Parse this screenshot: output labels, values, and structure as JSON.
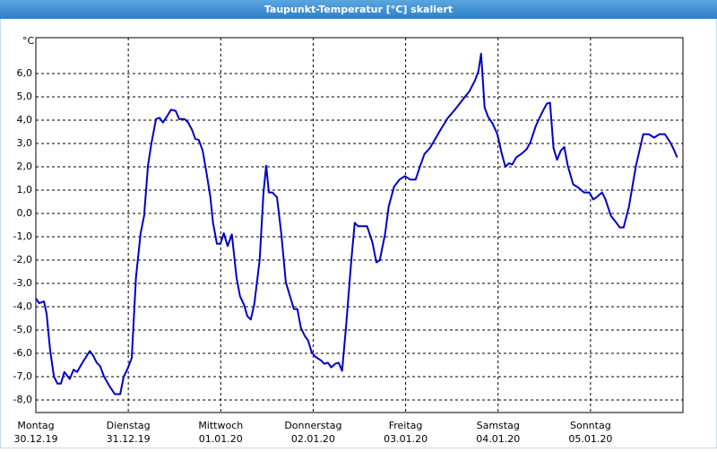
{
  "chart_data": {
    "type": "line",
    "title": "Taupunkt-Temperatur [°C] skaliert",
    "y_unit": "°C",
    "color": "#0000c8",
    "grid": true,
    "x": [
      0,
      0.9,
      2.1,
      2.8,
      3.7,
      4.7,
      5.6,
      6.5,
      7.4,
      8.8,
      9.8,
      10.7,
      12.1,
      14.0,
      14.9,
      15.8,
      16.7,
      17.7,
      19.1,
      20.5,
      21.9,
      22.8,
      23.7,
      24.9,
      26.0,
      27.2,
      28.1,
      29.1,
      30.0,
      31.2,
      32.1,
      33.0,
      34.0,
      35.1,
      36.3,
      37.2,
      38.6,
      39.5,
      40.5,
      41.4,
      42.3,
      43.3,
      44.4,
      45.3,
      46.0,
      47.0,
      47.9,
      48.8,
      49.8,
      50.9,
      52.1,
      53.0,
      54.0,
      54.9,
      55.8,
      56.7,
      58.1,
      59.1,
      59.8,
      60.5,
      61.4,
      62.6,
      63.7,
      64.9,
      66.0,
      67.0,
      67.9,
      68.8,
      69.8,
      70.7,
      71.6,
      72.6,
      74.0,
      74.9,
      75.8,
      76.7,
      77.7,
      78.6,
      79.5,
      80.5,
      81.9,
      82.8,
      83.7,
      85.1,
      86.0,
      87.4,
      88.4,
      89.3,
      90.7,
      91.6,
      93.0,
      94.4,
      95.8,
      97.2,
      98.6,
      99.5,
      100.9,
      102.3,
      103.7,
      105.1,
      107.0,
      108.8,
      110.7,
      112.6,
      114.0,
      114.9,
      115.6,
      116.5,
      117.4,
      118.6,
      119.8,
      120.9,
      121.9,
      122.8,
      123.7,
      124.7,
      126.0,
      127.4,
      128.4,
      129.8,
      131.2,
      132.6,
      133.5,
      134.4,
      135.3,
      136.3,
      137.2,
      138.1,
      139.5,
      140.9,
      142.3,
      143.7,
      144.7,
      145.6,
      147.0,
      147.9,
      149.3,
      150.7,
      151.6,
      152.6,
      154.0,
      155.8,
      157.7,
      159.1,
      160.5,
      161.9,
      163.3,
      164.7,
      165.6,
      166.5
    ],
    "values": [
      -3.65,
      -3.85,
      -3.77,
      -4.3,
      -5.85,
      -7.0,
      -7.3,
      -7.3,
      -6.8,
      -7.1,
      -6.7,
      -6.8,
      -6.4,
      -5.9,
      -6.1,
      -6.4,
      -6.55,
      -7.0,
      -7.4,
      -7.75,
      -7.75,
      -7.0,
      -6.7,
      -6.2,
      -2.75,
      -0.85,
      -0.1,
      2.05,
      3.0,
      4.05,
      4.1,
      3.9,
      4.15,
      4.45,
      4.4,
      4.05,
      4.05,
      3.9,
      3.6,
      3.2,
      3.15,
      2.7,
      1.65,
      0.7,
      -0.4,
      -1.3,
      -1.3,
      -0.85,
      -1.4,
      -0.9,
      -2.75,
      -3.55,
      -3.9,
      -4.4,
      -4.55,
      -3.9,
      -2.0,
      0.9,
      2.05,
      0.9,
      0.9,
      0.7,
      -0.85,
      -2.95,
      -3.55,
      -4.1,
      -4.1,
      -4.9,
      -5.25,
      -5.45,
      -5.95,
      -6.15,
      -6.3,
      -6.45,
      -6.4,
      -6.6,
      -6.45,
      -6.4,
      -6.75,
      -4.9,
      -2.0,
      -0.4,
      -0.55,
      -0.55,
      -0.55,
      -1.25,
      -2.1,
      -2.0,
      -0.85,
      0.3,
      1.15,
      1.45,
      1.6,
      1.45,
      1.45,
      1.9,
      2.55,
      2.8,
      3.2,
      3.6,
      4.1,
      4.45,
      4.85,
      5.25,
      5.7,
      6.1,
      6.85,
      4.55,
      4.15,
      3.85,
      3.4,
      2.6,
      2.0,
      2.15,
      2.1,
      2.4,
      2.55,
      2.75,
      3.05,
      3.75,
      4.25,
      4.7,
      4.75,
      2.8,
      2.3,
      2.7,
      2.85,
      2.05,
      1.25,
      1.1,
      0.9,
      0.9,
      0.6,
      0.7,
      0.9,
      0.6,
      -0.1,
      -0.4,
      -0.6,
      -0.6,
      0.3,
      2.05,
      3.4,
      3.4,
      3.25,
      3.4,
      3.4,
      3.05,
      2.75,
      2.4
    ],
    "xlim": [
      0,
      168
    ],
    "xticks": [
      {
        "value": 0,
        "label": "Montag"
      },
      {
        "value": 24,
        "label": "Dienstag"
      },
      {
        "value": 48,
        "label": "Mittwoch"
      },
      {
        "value": 72,
        "label": "Donnerstag"
      },
      {
        "value": 96,
        "label": "Freitag"
      },
      {
        "value": 120,
        "label": "Samstag"
      },
      {
        "value": 144,
        "label": "Sonntag"
      }
    ],
    "xtick_dates": [
      "30.12.19",
      "31.12.19",
      "01.01.20",
      "02.01.20",
      "03.01.20",
      "04.01.20",
      "05.01.20"
    ],
    "ylim": [
      -8.54,
      7.54
    ],
    "yticks": [
      {
        "value": 6,
        "label": "6,0"
      },
      {
        "value": 5,
        "label": "5,0"
      },
      {
        "value": 4,
        "label": "4,0"
      },
      {
        "value": 3,
        "label": "3,0"
      },
      {
        "value": 2,
        "label": "2,0"
      },
      {
        "value": 1,
        "label": "1,0"
      },
      {
        "value": 0,
        "label": "0,0"
      },
      {
        "value": -1,
        "label": "-1,0"
      },
      {
        "value": -2,
        "label": "-2,0"
      },
      {
        "value": -3,
        "label": "-3,0"
      },
      {
        "value": -4,
        "label": "-4,0"
      },
      {
        "value": -5,
        "label": "-5,0"
      },
      {
        "value": -6,
        "label": "-6,0"
      },
      {
        "value": -7,
        "label": "-7,0"
      },
      {
        "value": -8,
        "label": "-8,0"
      }
    ]
  }
}
